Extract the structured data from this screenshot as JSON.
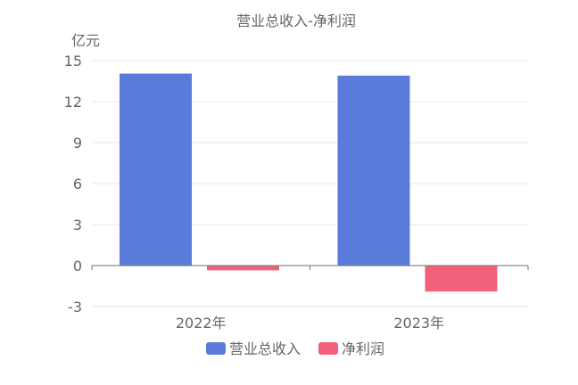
{
  "chart_data": {
    "type": "bar",
    "title": "营业总收入-净利润",
    "ylabel": "亿元",
    "xlabel": "",
    "categories": [
      "2022年",
      "2023年"
    ],
    "ylim": [
      -3,
      15
    ],
    "yticks": [
      -3,
      0,
      3,
      6,
      9,
      12,
      15
    ],
    "grid": true,
    "legend_position": "bottom-center",
    "series": [
      {
        "name": "营业总收入",
        "color": "#5b7bda",
        "values": [
          14.05,
          13.9
        ]
      },
      {
        "name": "净利润",
        "color": "#f2617a",
        "values": [
          -0.35,
          -1.9
        ]
      }
    ]
  }
}
